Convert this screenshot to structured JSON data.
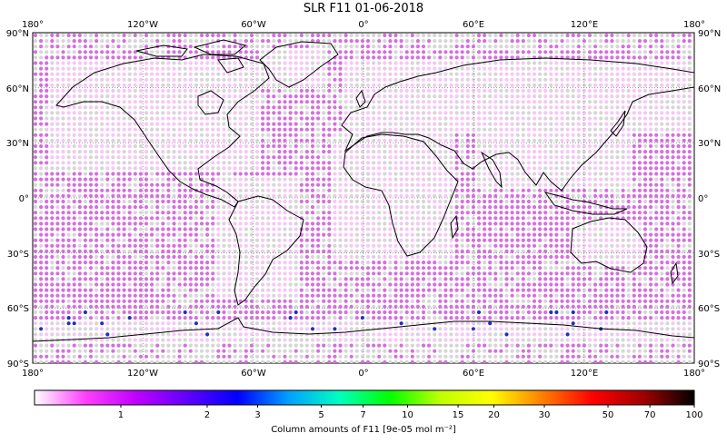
{
  "title": "SLR F11 01-06-2018",
  "map": {
    "lon_labels": [
      "180°",
      "120°W",
      "60°W",
      "0°",
      "60°E",
      "120°E",
      "180°"
    ],
    "lat_labels_left": [
      "90°N",
      "60°N",
      "30°N",
      "0°",
      "30°S",
      "60°S",
      "90°S"
    ],
    "lat_labels_right": [
      "90°N",
      "60°N",
      "30°N",
      "0°",
      "30°S",
      "60°S",
      "90°S"
    ]
  },
  "colorbar": {
    "ticks": [
      "1",
      "2",
      "3",
      "5",
      "7",
      "10",
      "15",
      "20",
      "30",
      "50",
      "70",
      "100"
    ],
    "tick_values": [
      1,
      2,
      3,
      5,
      7,
      10,
      15,
      20,
      30,
      50,
      70,
      100
    ],
    "range": [
      0.5,
      100
    ],
    "stops": [
      "#ffffff",
      "#ff40ff",
      "#c000ff",
      "#6000ff",
      "#0000ff",
      "#00a0ff",
      "#00ffc0",
      "#00ff00",
      "#c0ff00",
      "#ffff00",
      "#ff8000",
      "#ff0000",
      "#a00000",
      "#000000"
    ],
    "label": "Column amounts of F11 [9e-05 mol m⁻²]"
  },
  "colors": {
    "ocean_dots": "#d66ee0",
    "land_dots": "#f5c8f5",
    "missing_dots": "#d6d6d6",
    "coastline": "#000000"
  }
}
